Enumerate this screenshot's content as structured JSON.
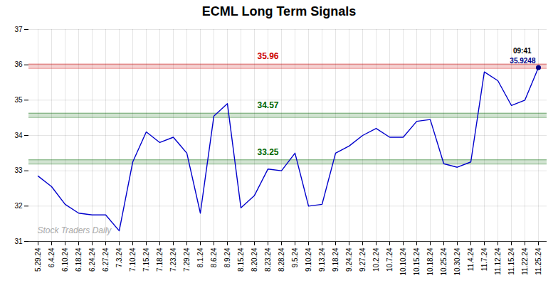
{
  "chart_data": {
    "type": "line",
    "title": "ECML Long Term Signals",
    "categories": [
      "5.29.24",
      "6.4.24",
      "6.10.24",
      "6.18.24",
      "6.24.24",
      "6.27.24",
      "7.3.24",
      "7.10.24",
      "7.15.24",
      "7.18.24",
      "7.23.24",
      "7.29.24",
      "8.1.24",
      "8.6.24",
      "8.9.24",
      "8.15.24",
      "8.20.24",
      "8.23.24",
      "8.28.24",
      "9.5.24",
      "9.10.24",
      "9.13.24",
      "9.18.24",
      "9.24.24",
      "9.27.24",
      "10.2.24",
      "10.7.24",
      "10.10.24",
      "10.15.24",
      "10.18.24",
      "10.25.24",
      "10.30.24",
      "11.4.24",
      "11.7.24",
      "11.12.24",
      "11.15.24",
      "11.22.24",
      "11.25.24"
    ],
    "values": [
      32.85,
      32.55,
      32.05,
      31.8,
      31.75,
      31.75,
      31.3,
      33.25,
      34.1,
      33.8,
      33.95,
      33.5,
      31.8,
      34.55,
      34.9,
      31.95,
      32.3,
      33.05,
      33.0,
      33.5,
      32.0,
      32.05,
      33.5,
      33.7,
      34.0,
      34.2,
      33.95,
      33.95,
      34.4,
      34.45,
      33.2,
      33.1,
      33.25,
      35.8,
      35.55,
      34.85,
      35.0,
      35.9248
    ],
    "color": "#0000cc",
    "ylim": [
      31,
      37
    ],
    "yticks": [
      31,
      32,
      33,
      34,
      35,
      36,
      37
    ],
    "grid": true,
    "levels": [
      {
        "value": 35.96,
        "label": "35.96",
        "color": "#cc0000"
      },
      {
        "value": 34.57,
        "label": "34.57",
        "color": "#006600"
      },
      {
        "value": 33.25,
        "label": "33.25",
        "color": "#006600"
      }
    ],
    "last_point": {
      "value": 35.9248,
      "label": "35.9248",
      "time": "09:41",
      "color": "#000088"
    },
    "watermark": "Stock Traders Daily"
  }
}
